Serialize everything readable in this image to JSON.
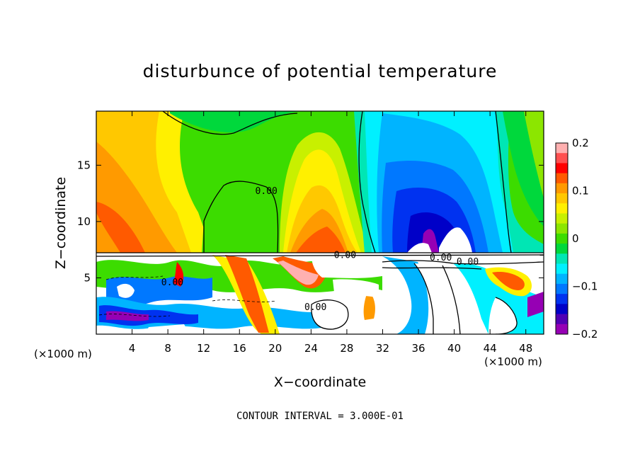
{
  "chart_data": {
    "type": "heatmap",
    "title": "disturbunce of potential temperature",
    "xlabel": "X−coordinate",
    "ylabel": "Z−coordinate",
    "x_unit": "(×1000 m)",
    "z_unit": "(×1000 m)",
    "xlim": [
      0,
      50
    ],
    "ylim": [
      0,
      19.8
    ],
    "x_ticks": [
      4,
      8,
      12,
      16,
      20,
      24,
      28,
      32,
      36,
      40,
      44,
      48
    ],
    "y_ticks": [
      5,
      10,
      15
    ],
    "colorbar": {
      "range": [
        -0.2,
        0.2
      ],
      "ticks": [
        "0.2",
        "0.1",
        "0",
        "−0.1",
        "−0.2"
      ],
      "tick_values": [
        0.2,
        0.1,
        0,
        -0.1,
        -0.2
      ],
      "colors": [
        "#ffb0b0",
        "#ff5050",
        "#ff0000",
        "#ff5a00",
        "#ff9a00",
        "#ffc800",
        "#fff000",
        "#c8f000",
        "#8ce600",
        "#3cdc00",
        "#00d83c",
        "#00e6b4",
        "#00f0ff",
        "#00b4ff",
        "#0078ff",
        "#0032f0",
        "#0000c8",
        "#5000b4",
        "#9600b4"
      ]
    },
    "contour_labels": [
      {
        "text": "0.00",
        "x": 19.0,
        "z": 12.7
      },
      {
        "text": "0.00",
        "x": 27.8,
        "z": 7.0
      },
      {
        "text": "0.00",
        "x": 24.5,
        "z": 2.4
      },
      {
        "text": "0.00",
        "x": 8.5,
        "z": 4.6
      },
      {
        "text": "0.00",
        "x": 38.5,
        "z": 6.8
      },
      {
        "text": "0.00",
        "x": 41.5,
        "z": 6.4
      }
    ],
    "grid": false,
    "legend": "colorbar-right"
  },
  "annotation": "CONTOUR INTERVAL = 3.000E-01"
}
